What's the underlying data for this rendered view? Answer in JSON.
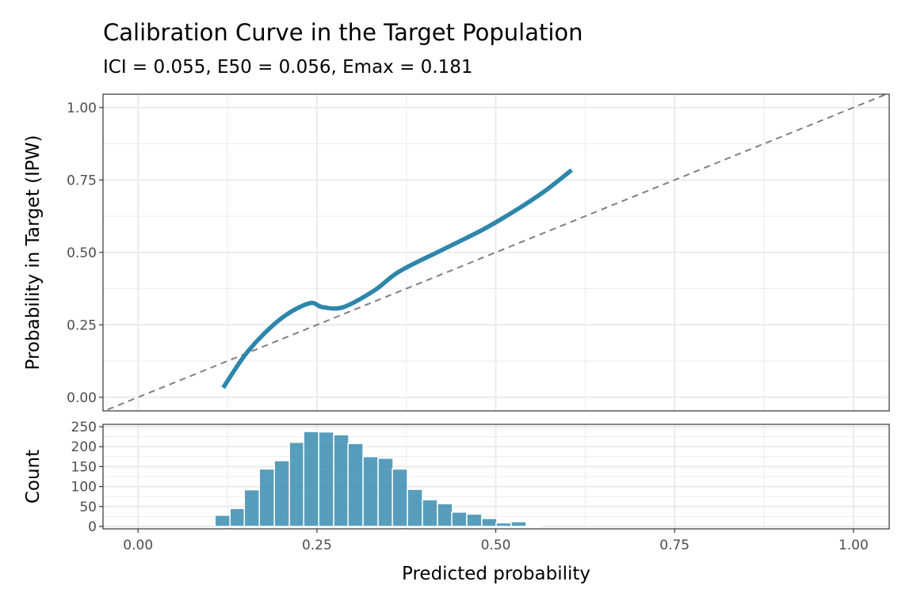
{
  "chart_data": [
    {
      "type": "line",
      "title": "Calibration Curve in the Target Population",
      "subtitle": "ICI = 0.055, E50 = 0.056, Emax = 0.181",
      "xlabel": "",
      "ylabel": "Probability in Target (IPW)",
      "xlim": [
        -0.049,
        1.05
      ],
      "ylim": [
        -0.047,
        1.046
      ],
      "xticks": [
        "0.00",
        "0.25",
        "0.50",
        "0.75",
        "1.00"
      ],
      "yticks": [
        "0.00",
        "0.25",
        "0.50",
        "0.75",
        "1.00"
      ],
      "grid": true,
      "series": [
        {
          "x": [
            0.119,
            0.154,
            0.199,
            0.239,
            0.258,
            0.287,
            0.331,
            0.365,
            0.427,
            0.486,
            0.538,
            0.571,
            0.606
          ],
          "y": [
            0.033,
            0.16,
            0.27,
            0.324,
            0.311,
            0.311,
            0.37,
            0.434,
            0.511,
            0.584,
            0.661,
            0.716,
            0.784
          ],
          "color": "#2E86AB"
        }
      ],
      "reference_line": {
        "x": [
          0,
          1
        ],
        "y": [
          0,
          1
        ],
        "style": "dashed",
        "color": "#808080"
      }
    },
    {
      "type": "bar",
      "xlabel": "Predicted probability",
      "ylabel": "Count",
      "xlim": [
        -0.049,
        1.05
      ],
      "ylim": [
        -6,
        256
      ],
      "xticks": [
        "0.00",
        "0.25",
        "0.50",
        "0.75",
        "1.00"
      ],
      "yticks": [
        "0",
        "50",
        "100",
        "150",
        "200",
        "250"
      ],
      "grid": true,
      "color": "#2E86AB",
      "x": [
        0.118,
        0.139,
        0.159,
        0.18,
        0.201,
        0.222,
        0.242,
        0.263,
        0.284,
        0.304,
        0.325,
        0.346,
        0.366,
        0.387,
        0.408,
        0.429,
        0.449,
        0.47,
        0.491,
        0.511,
        0.532,
        0.553
      ],
      "values": [
        28,
        45,
        92,
        144,
        165,
        211,
        238,
        237,
        230,
        208,
        175,
        171,
        144,
        93,
        67,
        57,
        36,
        31,
        20,
        9,
        12,
        1
      ]
    }
  ]
}
